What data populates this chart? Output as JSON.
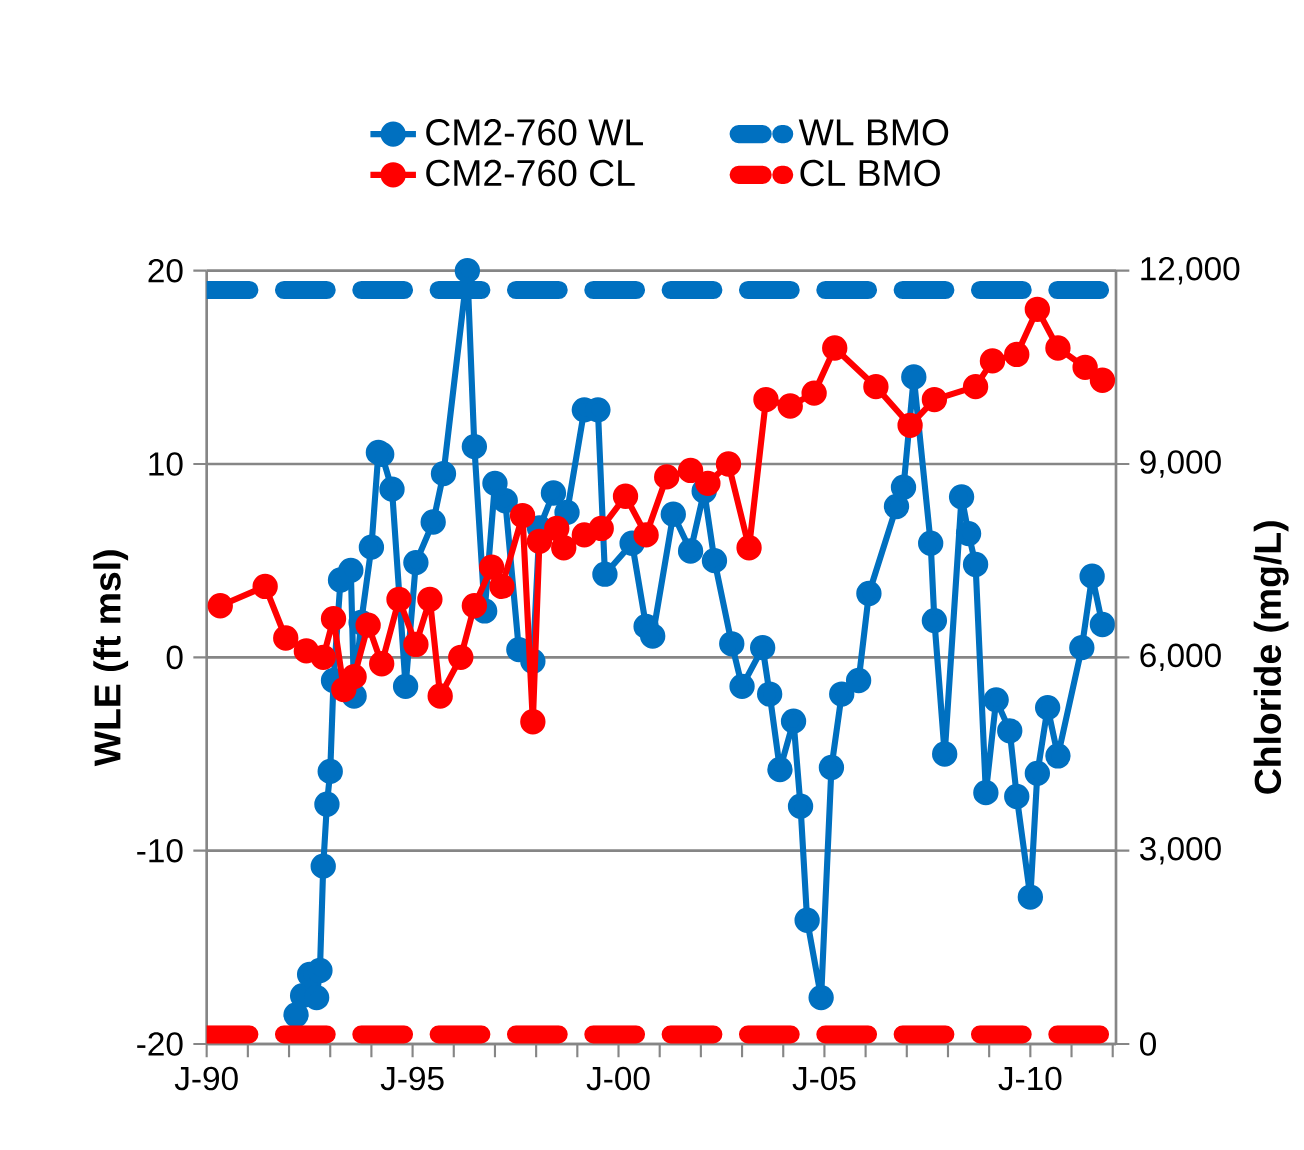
{
  "chart_data": {
    "type": "line",
    "ylabel": "WLE (ft msl)",
    "y2label": "Chloride (mg/L)",
    "grid": "y",
    "legend": "top",
    "xlim": [
      "1990-01",
      "2012-02"
    ],
    "xticks": [
      {
        "value": "1990-01",
        "label": "J-90"
      },
      {
        "value": "1991-01",
        "label": null
      },
      {
        "value": "1992-01",
        "label": null
      },
      {
        "value": "1993-01",
        "label": null
      },
      {
        "value": "1994-01",
        "label": null
      },
      {
        "value": "1995-01",
        "label": "J-95"
      },
      {
        "value": "1996-01",
        "label": null
      },
      {
        "value": "1997-01",
        "label": null
      },
      {
        "value": "1998-01",
        "label": null
      },
      {
        "value": "1999-01",
        "label": null
      },
      {
        "value": "2000-01",
        "label": "J-00"
      },
      {
        "value": "2001-01",
        "label": null
      },
      {
        "value": "2002-01",
        "label": null
      },
      {
        "value": "2003-01",
        "label": null
      },
      {
        "value": "2004-01",
        "label": null
      },
      {
        "value": "2005-01",
        "label": "J-05"
      },
      {
        "value": "2006-01",
        "label": null
      },
      {
        "value": "2007-01",
        "label": null
      },
      {
        "value": "2008-01",
        "label": null
      },
      {
        "value": "2009-01",
        "label": null
      },
      {
        "value": "2010-01",
        "label": "J-10"
      },
      {
        "value": "2011-01",
        "label": null
      },
      {
        "value": "2012-01",
        "label": null
      }
    ],
    "ylim": [
      -20,
      20
    ],
    "yticks": [
      -20,
      -10,
      0,
      10,
      20
    ],
    "y2lim": [
      0,
      12000
    ],
    "y2ticks": [
      {
        "value": 0,
        "label": "0"
      },
      {
        "value": 3000,
        "label": "3,000"
      },
      {
        "value": 6000,
        "label": "6,000"
      },
      {
        "value": 9000,
        "label": "9,000"
      },
      {
        "value": 12000,
        "label": "12,000"
      }
    ],
    "series": [
      {
        "name": "CM2-760 WL",
        "color": "#0070c0",
        "marker": "circle",
        "line_style": "solid",
        "x": [
          "1992-03",
          "1992-05",
          "1992-07",
          "1992-09",
          "1992-10",
          "1992-11",
          "1992-12",
          "1993-01",
          "1993-02",
          "1993-04",
          "1993-07",
          "1993-08",
          "1993-10",
          "1994-01",
          "1994-03",
          "1994-04",
          "1994-07",
          "1994-11",
          "1995-02",
          "1995-07",
          "1995-10",
          "1996-05",
          "1996-07",
          "1996-10",
          "1997-01",
          "1997-04",
          "1997-08",
          "1997-12",
          "1998-02",
          "1998-06",
          "1998-10",
          "1999-03",
          "1999-07",
          "1999-09",
          "2000-05",
          "2000-09",
          "2000-11",
          "2001-05",
          "2001-10",
          "2002-02",
          "2002-05",
          "2002-10",
          "2003-01",
          "2003-07",
          "2003-09",
          "2003-12",
          "2004-04",
          "2004-06",
          "2004-08",
          "2004-12",
          "2005-03",
          "2005-06",
          "2005-11",
          "2006-02",
          "2006-10",
          "2006-12",
          "2007-03",
          "2007-08",
          "2007-09",
          "2007-12",
          "2008-05",
          "2008-07",
          "2008-09",
          "2008-12",
          "2009-03",
          "2009-07",
          "2009-09",
          "2010-01",
          "2010-03",
          "2010-06",
          "2010-09",
          "2011-04",
          "2011-07",
          "2011-10"
        ],
        "values": [
          -18.5,
          -17.5,
          -16.4,
          -17.6,
          -16.2,
          -10.8,
          -7.6,
          -5.9,
          -1.2,
          4.0,
          4.5,
          -2.0,
          1.8,
          5.7,
          10.6,
          10.5,
          8.7,
          -1.5,
          4.9,
          7.0,
          9.5,
          20,
          10.9,
          2.4,
          9.0,
          8.1,
          0.4,
          -0.2,
          6.7,
          8.5,
          7.5,
          12.8,
          12.8,
          4.3,
          5.9,
          1.6,
          1.1,
          7.4,
          5.5,
          8.6,
          5.0,
          0.7,
          -1.5,
          0.5,
          -1.9,
          -5.8,
          -3.3,
          -7.7,
          -13.6,
          -17.6,
          -5.7,
          -1.9,
          -1.2,
          3.3,
          7.8,
          8.8,
          14.5,
          5.9,
          1.9,
          -5.0,
          8.3,
          6.4,
          4.8,
          -7.0,
          -2.2,
          -3.8,
          -7.2,
          -12.4,
          -6.0,
          -2.6,
          -5.1,
          0.5,
          4.2,
          1.7
        ]
      },
      {
        "name": "CM2-760 CL",
        "color": "#ff0000",
        "marker": "circle",
        "line_style": "solid",
        "axis": "y2",
        "x": [
          "1990-05",
          "1991-06",
          "1991-12",
          "1992-06",
          "1992-11",
          "1993-02",
          "1993-05",
          "1993-08",
          "1993-12",
          "1994-04",
          "1994-09",
          "1995-02",
          "1995-06",
          "1995-09",
          "1996-03",
          "1996-07",
          "1996-12",
          "1997-03",
          "1997-09",
          "1997-12",
          "1998-02",
          "1998-07",
          "1998-09",
          "1999-03",
          "1999-08",
          "2000-03",
          "2000-09",
          "2001-03",
          "2001-10",
          "2002-03",
          "2002-09",
          "2003-03",
          "2003-08",
          "2004-03",
          "2004-10",
          "2005-04",
          "2006-04",
          "2007-02",
          "2007-09",
          "2008-09",
          "2009-02",
          "2009-09",
          "2010-03",
          "2010-09",
          "2011-05",
          "2011-10"
        ],
        "values": [
          6800,
          7100,
          6300,
          6100,
          6000,
          6600,
          5500,
          5700,
          6500,
          5900,
          6900,
          6200,
          6900,
          5400,
          6000,
          6800,
          7400,
          7100,
          8200,
          5000,
          7800,
          8000,
          7700,
          7900,
          8000,
          8500,
          7900,
          8800,
          8900,
          8700,
          9000,
          7700,
          10000,
          9900,
          10100,
          10800,
          10200,
          9600,
          10000,
          10200,
          10600,
          10700,
          11400,
          10800,
          10500,
          10300
        ]
      },
      {
        "name": "WL BMO",
        "color": "#0070c0",
        "marker": "none",
        "line_style": "dashed",
        "x": [
          "1990-01",
          "2012-02"
        ],
        "values": [
          19,
          19
        ]
      },
      {
        "name": "CL BMO",
        "color": "#ff0000",
        "marker": "none",
        "line_style": "dashed",
        "axis": "y2",
        "x": [
          "1990-01",
          "2012-02"
        ],
        "values": [
          150,
          150
        ]
      }
    ]
  }
}
